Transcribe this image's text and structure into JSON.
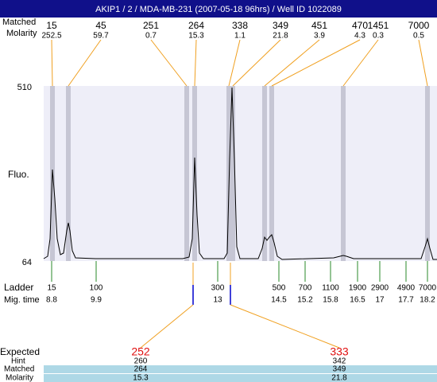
{
  "title": "AKIP1 / 2 / MDA-MB-231 (2007-05-18 96hrs) / Well ID 1022089",
  "header": {
    "peaks_label": "Matched",
    "molarity_label": "Molarity"
  },
  "peaks": [
    {
      "size": 15,
      "molarity": 252.5
    },
    {
      "size": 45,
      "molarity": 59.7
    },
    {
      "size": 251,
      "molarity": 0.7
    },
    {
      "size": 264,
      "molarity": 15.3
    },
    {
      "size": 338,
      "molarity": 1.1
    },
    {
      "size": 349,
      "molarity": 21.8
    },
    {
      "size": 451,
      "molarity": 3.9
    },
    {
      "size": 470,
      "molarity": 4.3
    },
    {
      "size": 1451,
      "molarity": 0.3
    },
    {
      "size": 7000,
      "molarity": 0.5
    }
  ],
  "y_axis": {
    "top": 510,
    "bottom": 64,
    "label": "Fluo."
  },
  "ladder": {
    "label": "Ladder",
    "time_label": "Mig. time",
    "items": [
      {
        "size": 15,
        "time": 8.8
      },
      {
        "size": 100,
        "time": 9.9
      },
      {
        "size": 300,
        "time": 13
      },
      {
        "size": 500,
        "time": 14.5
      },
      {
        "size": 700,
        "time": 15.2
      },
      {
        "size": 1100,
        "time": 15.8
      },
      {
        "size": 1900,
        "time": 16.5
      },
      {
        "size": 2900,
        "time": 17
      },
      {
        "size": 4900,
        "time": 17.7
      },
      {
        "size": 7000,
        "time": 18.2
      }
    ]
  },
  "expected": {
    "labels": {
      "expected": "Expected",
      "hint": "Hint",
      "matched": "Matched",
      "molarity": "Molarity"
    },
    "columns": [
      {
        "expected": 252,
        "hint": 260,
        "matched": 264,
        "molarity": 15.3
      },
      {
        "expected": 333,
        "hint": 342,
        "matched": 349,
        "molarity": 21.8
      }
    ]
  }
}
